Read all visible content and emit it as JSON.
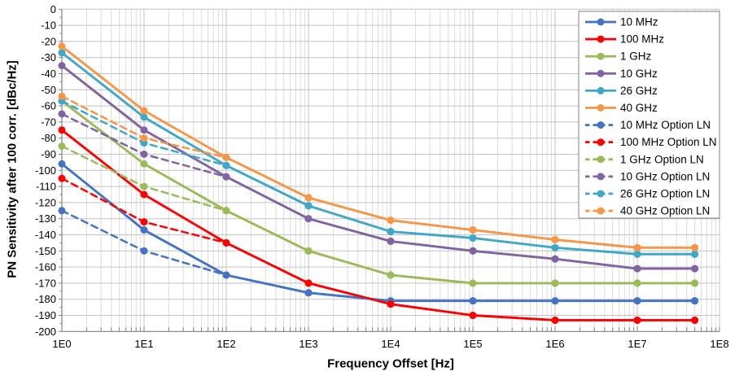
{
  "chart_data": {
    "type": "line",
    "title": "",
    "xlabel": "Frequency Offset [Hz]",
    "ylabel": "PN Sensitivity after 100 corr. [dBc/Hz]",
    "x_scale": "log",
    "xlim": [
      1,
      100000000
    ],
    "ylim": [
      -200,
      0
    ],
    "grid": true,
    "legend_position": "top-right",
    "x_tick_labels": [
      "1E0",
      "1E1",
      "1E2",
      "1E3",
      "1E4",
      "1E5",
      "1E6",
      "1E7",
      "1E8"
    ],
    "y_tick_labels": [
      "0",
      "-10",
      "-20",
      "-30",
      "-40",
      "-50",
      "-60",
      "-70",
      "-80",
      "-90",
      "-100",
      "-110",
      "-120",
      "-130",
      "-140",
      "-150",
      "-160",
      "-170",
      "-180",
      "-190",
      "-200"
    ],
    "x": [
      1,
      10,
      100,
      1000,
      10000,
      100000,
      1000000,
      10000000,
      50000000
    ],
    "series": [
      {
        "name": "10 MHz",
        "color": "#4472C4",
        "style": "solid",
        "values": [
          -96,
          -137,
          -165,
          -176,
          -181,
          -181,
          -181,
          -181,
          -181
        ]
      },
      {
        "name": "100 MHz",
        "color": "#FF0000",
        "style": "solid",
        "values": [
          -75,
          -115,
          -145,
          -170,
          -183,
          -190,
          -193,
          -193,
          -193
        ]
      },
      {
        "name": "1 GHz",
        "color": "#9BBB59",
        "style": "solid",
        "values": [
          -57,
          -96,
          -125,
          -150,
          -165,
          -170,
          -170,
          -170,
          -170
        ]
      },
      {
        "name": "10 GHz",
        "color": "#8064A2",
        "style": "solid",
        "values": [
          -35,
          -75,
          -104,
          -130,
          -144,
          -150,
          -155,
          -161,
          -161
        ]
      },
      {
        "name": "26 GHz",
        "color": "#3FA8C8",
        "style": "solid",
        "values": [
          -27,
          -67,
          -97,
          -122,
          -138,
          -142,
          -148,
          -152,
          -152
        ]
      },
      {
        "name": "40 GHz",
        "color": "#F79646",
        "style": "solid",
        "values": [
          -23,
          -63,
          -92,
          -117,
          -131,
          -137,
          -143,
          -148,
          -148
        ]
      },
      {
        "name": "10 MHz Option LN",
        "color": "#4472C4",
        "style": "dashed",
        "values": [
          -125,
          -150,
          -165,
          -176,
          -181,
          -181,
          -181,
          -181,
          -181
        ]
      },
      {
        "name": "100 MHz Option LN",
        "color": "#FF0000",
        "style": "dashed",
        "values": [
          -105,
          -132,
          -145,
          -170,
          -183,
          -190,
          -193,
          -193,
          -193
        ]
      },
      {
        "name": "1 GHz Option LN",
        "color": "#9BBB59",
        "style": "dashed",
        "values": [
          -85,
          -110,
          -125,
          -150,
          -165,
          -170,
          -170,
          -170,
          -170
        ]
      },
      {
        "name": "10 GHz Option LN",
        "color": "#8064A2",
        "style": "dashed",
        "values": [
          -65,
          -90,
          -104,
          -130,
          -144,
          -150,
          -155,
          -161,
          -161
        ]
      },
      {
        "name": "26 GHz Option LN",
        "color": "#3FA8C8",
        "style": "dashed",
        "values": [
          -57,
          -83,
          -97,
          -122,
          -138,
          -142,
          -148,
          -152,
          -152
        ]
      },
      {
        "name": "40 GHz Option LN",
        "color": "#F79646",
        "style": "dashed",
        "values": [
          -54,
          -80,
          -92,
          -117,
          -131,
          -137,
          -143,
          -148,
          -148
        ]
      }
    ],
    "colors": {
      "grid_major": "#C3C3C3",
      "grid_minor": "#DCDCDC",
      "axis_line": "#808080",
      "legend_border": "#808080",
      "text": "#000000"
    }
  }
}
